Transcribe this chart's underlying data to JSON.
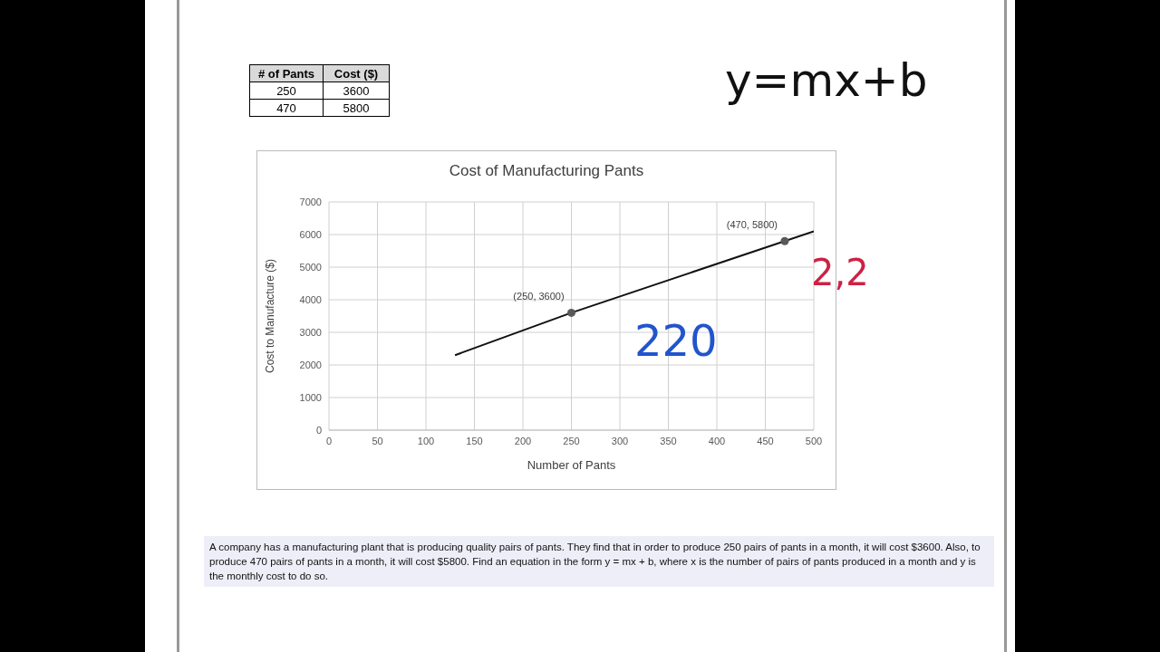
{
  "chart_data": {
    "type": "scatter",
    "title": "Cost of Manufacturing Pants",
    "xlabel": "Number of Pants",
    "ylabel": "Cost to Manufacture ($)",
    "xlim": [
      0,
      500
    ],
    "xticks": [
      0,
      50,
      100,
      150,
      200,
      250,
      300,
      350,
      400,
      450,
      500
    ],
    "ylim": [
      0,
      7000
    ],
    "yticks": [
      0,
      1000,
      2000,
      3000,
      4000,
      5000,
      6000,
      7000
    ],
    "grid": true,
    "legend": false,
    "series": [
      {
        "color": "#595959",
        "marker": "circle",
        "x": [
          250,
          470
        ],
        "values": [
          3600,
          5800
        ]
      },
      {
        "type": "line",
        "color": "#111111",
        "marker": "none",
        "x": [
          130,
          250,
          470,
          500
        ],
        "values": [
          2300,
          3600,
          5800,
          6100
        ]
      }
    ],
    "annotations": [
      {
        "text": "(250, 3600)",
        "x": 250,
        "y": 3600
      },
      {
        "text": "(470, 5800)",
        "x": 470,
        "y": 5800
      },
      "# of Pants",
      "Cost ($)",
      "250",
      "3600",
      "470",
      "5800",
      "y=mx+b",
      "220",
      "2,2",
      "A company has a manufacturing plant that is producing quality pairs of pants. They find that in order to produce 250 pairs of pants in a month, it will cost $3600. Also, to produce 470 pairs of pants in a month, it will cost $5800. Find an equation in the form y = mx + b, where x is the number of pairs of pants produced in a month and y is the monthly cost to do so."
    ]
  }
}
